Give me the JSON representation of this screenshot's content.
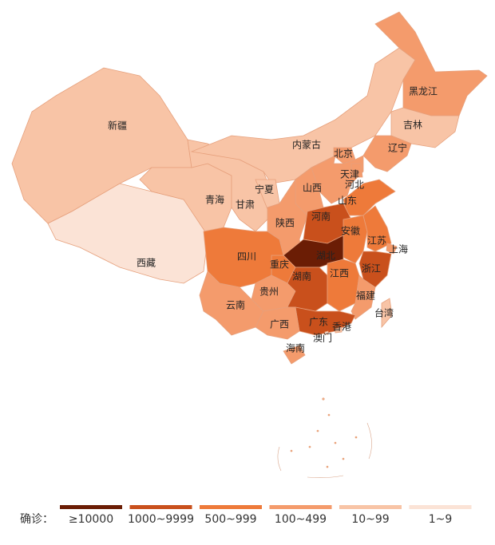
{
  "legend": {
    "title": "确诊：",
    "items": [
      {
        "label": "≥10000",
        "color": "#6b1d05"
      },
      {
        "label": "1000~9999",
        "color": "#c9501c"
      },
      {
        "label": "500~999",
        "color": "#ee7a3a"
      },
      {
        "label": "100~499",
        "color": "#f49b6c"
      },
      {
        "label": "10~99",
        "color": "#f8c4a6"
      },
      {
        "label": "1~9",
        "color": "#fbe3d6"
      }
    ]
  },
  "regions": [
    {
      "name": "新疆",
      "color": "#f8c4a6"
    },
    {
      "name": "西藏",
      "color": "#fbe3d6"
    },
    {
      "name": "青海",
      "color": "#f8c4a6"
    },
    {
      "name": "甘肃",
      "color": "#f8c4a6"
    },
    {
      "name": "内蒙古",
      "color": "#f8c4a6"
    },
    {
      "name": "宁夏",
      "color": "#f8c4a6"
    },
    {
      "name": "黑龙江",
      "color": "#f49b6c"
    },
    {
      "name": "吉林",
      "color": "#f8c4a6"
    },
    {
      "name": "辽宁",
      "color": "#f49b6c"
    },
    {
      "name": "北京",
      "color": "#f49b6c"
    },
    {
      "name": "河北",
      "color": "#f49b6c"
    },
    {
      "name": "天津",
      "color": "#f49b6c"
    },
    {
      "name": "山西",
      "color": "#f49b6c"
    },
    {
      "name": "陕西",
      "color": "#f49b6c"
    },
    {
      "name": "山东",
      "color": "#ee7a3a"
    },
    {
      "name": "河南",
      "color": "#c9501c"
    },
    {
      "name": "安徽",
      "color": "#ee7a3a"
    },
    {
      "name": "江苏",
      "color": "#ee7a3a"
    },
    {
      "name": "上海",
      "color": "#f49b6c"
    },
    {
      "name": "浙江",
      "color": "#c9501c"
    },
    {
      "name": "湖北",
      "color": "#6b1d05"
    },
    {
      "name": "重庆",
      "color": "#ee7a3a"
    },
    {
      "name": "四川",
      "color": "#ee7a3a"
    },
    {
      "name": "贵州",
      "color": "#f49b6c"
    },
    {
      "name": "云南",
      "color": "#f49b6c"
    },
    {
      "name": "湖南",
      "color": "#c9501c"
    },
    {
      "name": "江西",
      "color": "#ee7a3a"
    },
    {
      "name": "福建",
      "color": "#f49b6c"
    },
    {
      "name": "广东",
      "color": "#c9501c"
    },
    {
      "name": "广西",
      "color": "#f49b6c"
    },
    {
      "name": "海南",
      "color": "#f49b6c"
    },
    {
      "name": "台湾",
      "color": "#f8c4a6"
    },
    {
      "name": "香港",
      "color": "#f8c4a6"
    },
    {
      "name": "澳门",
      "color": "#fbe3d6"
    }
  ]
}
